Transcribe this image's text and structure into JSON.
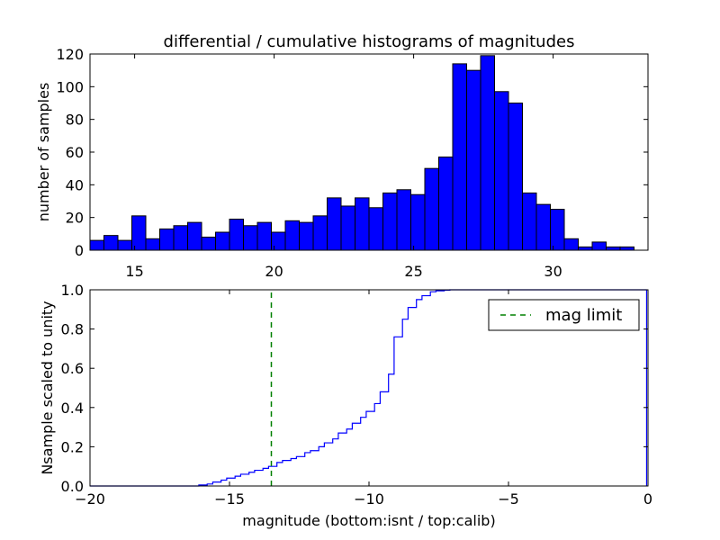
{
  "chart_data": [
    {
      "type": "bar",
      "panel": "top",
      "title": "differential / cumulative histograms of magnitudes",
      "xlabel": "",
      "ylabel": "number of samples",
      "xlim": [
        13.4,
        33.4
      ],
      "ylim": [
        0,
        120
      ],
      "bin_width": 0.5,
      "bin_start": 13.4,
      "xticks": [
        15,
        20,
        25,
        30
      ],
      "xtick_labels": [
        "15",
        "20",
        "25",
        "30"
      ],
      "yticks": [
        0,
        20,
        40,
        60,
        80,
        100,
        120
      ],
      "ytick_labels": [
        "0",
        "20",
        "40",
        "60",
        "80",
        "100",
        "120"
      ],
      "bar_color": "#0000ff",
      "values": [
        6,
        9,
        6,
        21,
        7,
        13,
        15,
        17,
        8,
        11,
        19,
        15,
        17,
        11,
        18,
        17,
        21,
        32,
        27,
        32,
        26,
        35,
        37,
        34,
        50,
        57,
        114,
        110,
        119,
        97,
        90,
        35,
        28,
        25,
        7,
        2,
        5,
        2,
        2,
        0
      ]
    },
    {
      "type": "line",
      "panel": "bottom",
      "step": true,
      "xlabel": "magnitude (bottom:isnt / top:calib)",
      "ylabel": "Nsample scaled to unity",
      "xlim": [
        -20,
        0
      ],
      "ylim": [
        0,
        1
      ],
      "xticks": [
        -20,
        -15,
        -10,
        -5,
        0
      ],
      "xtick_labels": [
        "−20",
        "−15",
        "−10",
        "−5",
        "0"
      ],
      "yticks": [
        0,
        0.2,
        0.4,
        0.6,
        0.8,
        1.0
      ],
      "ytick_labels": [
        "0.0",
        "0.2",
        "0.4",
        "0.6",
        "0.8",
        "1.0"
      ],
      "series": [
        {
          "name": "cumulative",
          "color": "#0000ff",
          "x": [
            -20,
            -16.1,
            -15.8,
            -15.6,
            -15.3,
            -15.1,
            -14.8,
            -14.6,
            -14.3,
            -14.1,
            -13.8,
            -13.6,
            -13.3,
            -13.1,
            -12.8,
            -12.6,
            -12.3,
            -12.1,
            -11.8,
            -11.6,
            -11.3,
            -11.1,
            -10.8,
            -10.6,
            -10.3,
            -10.1,
            -9.8,
            -9.6,
            -9.3,
            -9.1,
            -8.8,
            -8.6,
            -8.3,
            -8.1,
            -7.8,
            -7.6,
            -7.3,
            -7.1,
            -6.8,
            -6.6,
            -0.05
          ],
          "y": [
            0,
            0.005,
            0.01,
            0.02,
            0.03,
            0.04,
            0.05,
            0.06,
            0.07,
            0.08,
            0.09,
            0.1,
            0.12,
            0.13,
            0.14,
            0.15,
            0.17,
            0.18,
            0.2,
            0.22,
            0.24,
            0.27,
            0.29,
            0.32,
            0.35,
            0.38,
            0.42,
            0.48,
            0.57,
            0.76,
            0.85,
            0.91,
            0.95,
            0.97,
            0.99,
            0.995,
            0.998,
            1.0,
            1.0,
            1.0,
            1.0
          ]
        },
        {
          "name": "mag limit",
          "color": "#008000",
          "dashed": true,
          "x": [
            -13.5,
            -13.5
          ],
          "y": [
            0,
            1
          ]
        }
      ],
      "legend": {
        "entries": [
          "mag limit"
        ],
        "placement": "upper-right"
      }
    }
  ]
}
